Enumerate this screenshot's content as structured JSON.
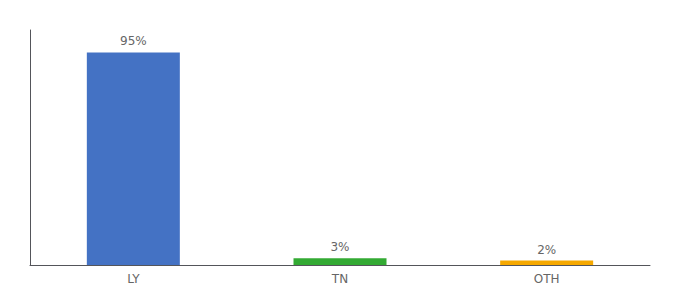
{
  "chart_data": {
    "type": "bar",
    "categories": [
      "LY",
      "TN",
      "OTH"
    ],
    "values": [
      95,
      3,
      2
    ],
    "value_labels": [
      "95%",
      "3%",
      "2%"
    ],
    "colors": [
      "#4472C4",
      "#33AA33",
      "#F5A800"
    ],
    "ylim": [
      0,
      105
    ],
    "grid": false,
    "data_labels": true,
    "tick_labels": "x"
  }
}
